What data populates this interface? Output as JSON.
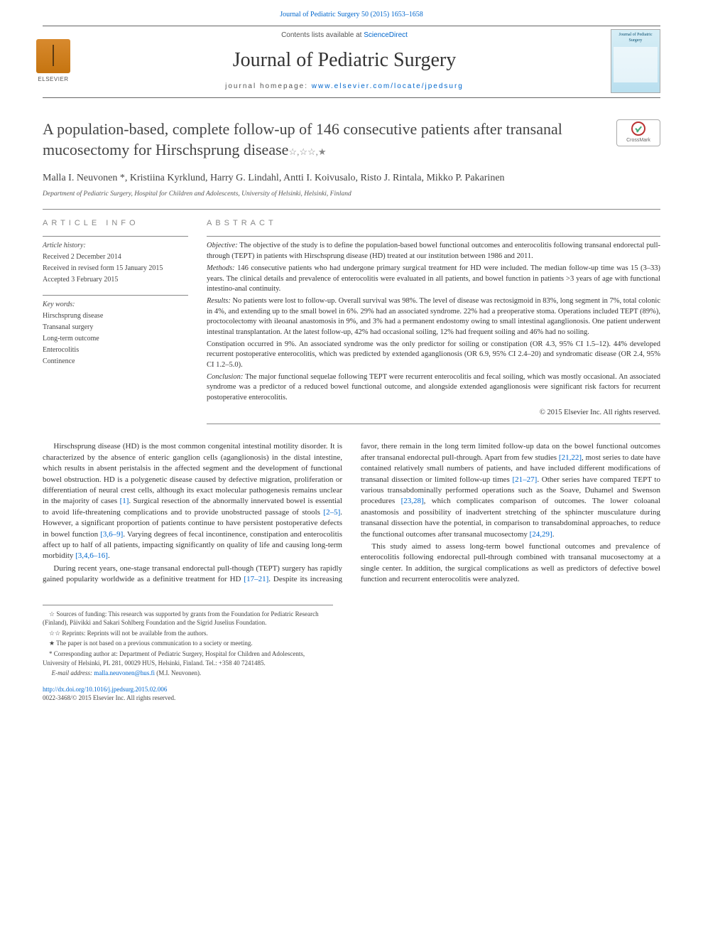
{
  "header": {
    "citation_link_text": "Journal of Pediatric Surgery 50 (2015) 1653–1658",
    "contents_prefix": "Contents lists available at ",
    "contents_link": "ScienceDirect",
    "journal_title": "Journal of Pediatric Surgery",
    "homepage_prefix": "journal homepage: ",
    "homepage_url": "www.elsevier.com/locate/jpedsurg",
    "elsevier_label": "ELSEVIER",
    "cover_title": "Journal of Pediatric Surgery",
    "crossmark_label": "CrossMark"
  },
  "article": {
    "title": "A population-based, complete follow-up of 146 consecutive patients after transanal mucosectomy for Hirschsprung disease",
    "title_marks": "☆,☆☆,★",
    "authors_list": "Malla I. Neuvonen *, Kristiina Kyrklund, Harry G. Lindahl, Antti I. Koivusalo, Risto J. Rintala, Mikko P. Pakarinen",
    "affiliation": "Department of Pediatric Surgery, Hospital for Children and Adolescents, University of Helsinki, Helsinki, Finland"
  },
  "info": {
    "label": "ARTICLE INFO",
    "history_label": "Article history:",
    "history": [
      "Received 2 December 2014",
      "Received in revised form 15 January 2015",
      "Accepted 3 February 2015"
    ],
    "keywords_label": "Key words:",
    "keywords": [
      "Hirschsprung disease",
      "Transanal surgery",
      "Long-term outcome",
      "Enterocolitis",
      "Continence"
    ]
  },
  "abstract": {
    "label": "ABSTRACT",
    "objective_label": "Objective:",
    "objective": " The objective of the study is to define the population-based bowel functional outcomes and enterocolitis following transanal endorectal pull-through (TEPT) in patients with Hirschsprung disease (HD) treated at our institution between 1986 and 2011.",
    "methods_label": "Methods:",
    "methods": " 146 consecutive patients who had undergone primary surgical treatment for HD were included. The median follow-up time was 15 (3–33) years. The clinical details and prevalence of enterocolitis were evaluated in all patients, and bowel function in patients >3 years of age with functional intestino-anal continuity.",
    "results_label": "Results:",
    "results1": " No patients were lost to follow-up. Overall survival was 98%. The level of disease was rectosigmoid in 83%, long segment in 7%, total colonic in 4%, and extending up to the small bowel in 6%. 29% had an associated syndrome. 22% had a preoperative stoma. Operations included TEPT (89%), proctocolectomy with ileoanal anastomosis in 9%, and 3% had a permanent endostomy owing to small intestinal aganglionosis. One patient underwent intestinal transplantation. At the latest follow-up, 42% had occasional soiling, 12% had frequent soiling and 46% had no soiling.",
    "results2": "Constipation occurred in 9%. An associated syndrome was the only predictor for soiling or constipation (OR 4.3, 95% CI 1.5–12). 44% developed recurrent postoperative enterocolitis, which was predicted by extended aganglionosis (OR 6.9, 95% CI 2.4–20) and syndromatic disease (OR 2.4, 95% CI 1.2–5.0).",
    "conclusion_label": "Conclusion:",
    "conclusion": " The major functional sequelae following TEPT were recurrent enterocolitis and fecal soiling, which was mostly occasional. An associated syndrome was a predictor of a reduced bowel functional outcome, and alongside extended aganglionosis were significant risk factors for recurrent postoperative enterocolitis.",
    "copyright": "© 2015 Elsevier Inc. All rights reserved."
  },
  "body": {
    "p1a": "Hirschsprung disease (HD) is the most common congenital intestinal motility disorder. It is characterized by the absence of enteric ganglion cells (aganglionosis) in the distal intestine, which results in absent peristalsis in the affected segment and the development of functional bowel obstruction. HD is a polygenetic disease caused by defective migration, proliferation or differentiation of neural crest cells, although its exact molecular pathogenesis remains unclear in the majority of cases ",
    "ref1": "[1]",
    "p1b": ". Surgical resection of the abnormally innervated bowel is essential to avoid life-threatening complications and to provide unobstructed passage of stools ",
    "ref2": "[2–5]",
    "p1c": ". However, a significant proportion of patients continue to have persistent postoperative defects in bowel function ",
    "ref3": "[3,6–9]",
    "p1d": ". Varying degrees of fecal incontinence, constipation",
    "p1e": " and enterocolitis affect up to half of all patients, impacting significantly on quality of life and causing long-term morbidity ",
    "ref4": "[3,4,6–16]",
    "p1f": ".",
    "p2a": "During recent years, one-stage transanal endorectal pull-though (TEPT) surgery has rapidly gained popularity worldwide as a definitive treatment for HD ",
    "ref5": "[17–21]",
    "p2b": ". Despite its increasing favor, there remain in the long term limited follow-up data on the bowel functional outcomes after transanal endorectal pull-through. Apart from few studies ",
    "ref6": "[21,22]",
    "p2c": ", most series to date have contained relatively small numbers of patients, and have included different modifications of transanal dissection or limited follow-up times ",
    "ref7": "[21–27]",
    "p2d": ". Other series have compared TEPT to various transabdominally performed operations such as the Soave, Duhamel and Swenson procedures ",
    "ref8": "[23,28]",
    "p2e": ", which complicates comparison of outcomes. The lower coloanal anastomosis and possibility of inadvertent stretching of the sphincter musculature during transanal dissection have the potential, in comparison to transabdominal approaches, to reduce the functional outcomes after transanal mucosectomy ",
    "ref9": "[24,29]",
    "p2f": ".",
    "p3": "This study aimed to assess long-term bowel functional outcomes and prevalence of enterocolitis following endorectal pull-through combined with transanal mucosectomy at a single center. In addition, the surgical complications as well as predictors of defective bowel function and recurrent enterocolitis were analyzed."
  },
  "footnotes": {
    "f1_mark": "☆",
    "f1": " Sources of funding: This research was supported by grants from the Foundation for Pediatric Research (Finland), Päivikki and Sakari Sohlberg Foundation and the Sigrid Juselius Foundation.",
    "f2_mark": "☆☆",
    "f2": " Reprints: Reprints will not be available from the authors.",
    "f3_mark": "★",
    "f3": " The paper is not based on a previous communication to a society or meeting.",
    "f4_mark": "*",
    "f4": " Corresponding author at: Department of Pediatric Surgery, Hospital for Children and Adolescents, University of Helsinki, PL 281, 00029 HUS, Helsinki, Finland. Tel.: +358 40 7241485.",
    "email_label": "E-mail address: ",
    "email": "malla.neuvonen@hus.fi",
    "email_suffix": " (M.I. Neuvonen)."
  },
  "doi": {
    "url": "http://dx.doi.org/10.1016/j.jpedsurg.2015.02.006",
    "issn_line": "0022-3468/© 2015 Elsevier Inc. All rights reserved."
  },
  "colors": {
    "link": "#0066cc",
    "text": "#333333",
    "muted": "#555555",
    "rule": "#888888"
  }
}
